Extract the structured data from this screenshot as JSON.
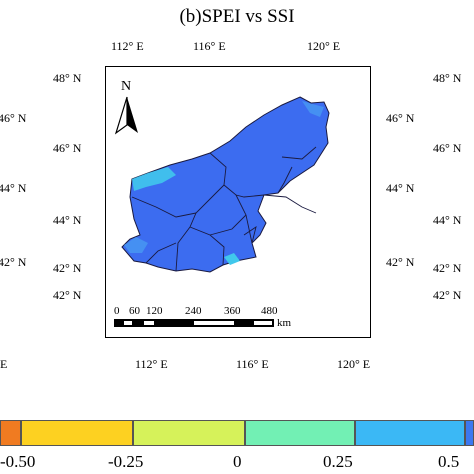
{
  "title": "(b)SPEI vs SSI",
  "lon_labels_top": [
    "112° E",
    "116° E",
    "120° E"
  ],
  "lon_labels_bottom": [
    "112° E",
    "116° E",
    "120° E"
  ],
  "lat_labels_left": [
    "48° N",
    "46° N",
    "44° N",
    "42° N",
    "42° N"
  ],
  "lat_labels_right": [
    "48° N",
    "46° N",
    "44° N",
    "42° N",
    "42° N"
  ],
  "partial_left_bottom": "E",
  "north_arrow": {
    "label": "N",
    "icon": "north-arrow-icon"
  },
  "scale_bar": {
    "ticks": [
      "0",
      "60",
      "120",
      "240",
      "360",
      "480"
    ],
    "unit": "km"
  },
  "colorbar": {
    "labels": [
      "-0.50",
      "-0.25",
      "0",
      "0.25",
      "0.5"
    ],
    "colors": [
      "#f07b21",
      "#fdd121",
      "#d6f25a",
      "#72f0b4",
      "#3bb8f5",
      "#3c78f0"
    ]
  },
  "colors": {
    "region_fill": "#3c6cf0",
    "region_light": "#40c8ec",
    "region_mid": "#4590f2",
    "boundary": "#1a1a40"
  }
}
